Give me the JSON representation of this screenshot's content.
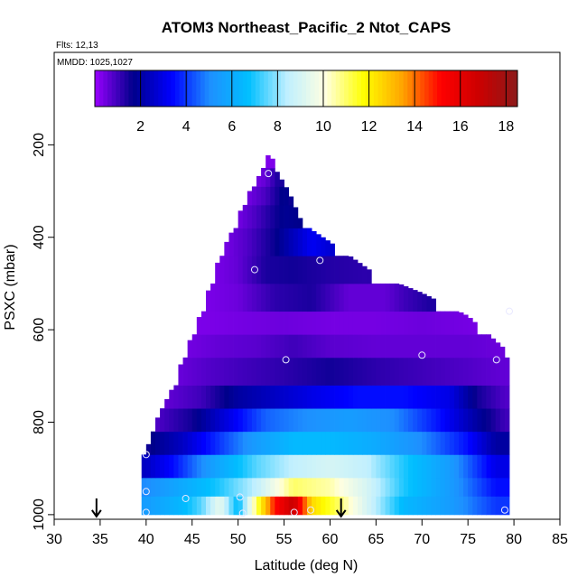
{
  "chart_data": {
    "type": "heatmap",
    "title": "ATOM3 Northeast_Pacific_2 Ntot_CAPS",
    "flights_note": "Flts: 12,13",
    "dates_note": "MMDD: 1025,1027",
    "xlabel": "Latitude (deg N)",
    "ylabel": "PSXC (mbar)",
    "xlim": [
      30,
      85
    ],
    "ylim": [
      1010,
      0
    ],
    "x_ticks": [
      "30",
      "35",
      "40",
      "45",
      "50",
      "55",
      "60",
      "65",
      "70",
      "75",
      "80",
      "85"
    ],
    "y_ticks": [
      "200",
      "400",
      "600",
      "800",
      "1000"
    ],
    "colorbar": {
      "min": 0,
      "max": 18.5,
      "ticks": [
        "2",
        "4",
        "6",
        "8",
        "10",
        "12",
        "14",
        "16",
        "18"
      ],
      "stops": [
        "#9900FF",
        "#00008B",
        "#0000FF",
        "#1E90FF",
        "#00BFFF",
        "#BFEFFF",
        "#FFFFE0",
        "#FFFF00",
        "#FFA500",
        "#FF0000",
        "#CC0000",
        "#8B1A1A"
      ]
    },
    "profile_top_pressure": [
      {
        "lat": 39.5,
        "p": 870
      },
      {
        "lat": 40.5,
        "p": 840
      },
      {
        "lat": 41,
        "p": 800
      },
      {
        "lat": 42,
        "p": 760
      },
      {
        "lat": 43,
        "p": 720
      },
      {
        "lat": 44,
        "p": 660
      },
      {
        "lat": 45,
        "p": 610
      },
      {
        "lat": 46,
        "p": 560
      },
      {
        "lat": 47,
        "p": 500
      },
      {
        "lat": 48,
        "p": 440
      },
      {
        "lat": 49.5,
        "p": 380
      },
      {
        "lat": 50.5,
        "p": 330
      },
      {
        "lat": 51.5,
        "p": 290
      },
      {
        "lat": 52.5,
        "p": 260
      },
      {
        "lat": 53.5,
        "p": 210
      },
      {
        "lat": 54,
        "p": 250
      },
      {
        "lat": 55.5,
        "p": 300
      },
      {
        "lat": 57,
        "p": 370
      },
      {
        "lat": 60,
        "p": 410
      },
      {
        "lat": 65,
        "p": 480
      },
      {
        "lat": 70,
        "p": 520
      },
      {
        "lat": 75,
        "p": 570
      },
      {
        "lat": 79.5,
        "p": 650
      }
    ],
    "profile_bottom_pressure": 1000,
    "bands": [
      {
        "p_from": 960,
        "p_to": 1000,
        "values": [
          [
            40,
            5.5
          ],
          [
            44,
            6.5
          ],
          [
            46,
            7.5
          ],
          [
            48,
            9.5
          ],
          [
            50,
            6.5
          ],
          [
            52,
            11
          ],
          [
            54,
            15
          ],
          [
            56,
            17
          ],
          [
            58,
            12.5
          ],
          [
            61,
            11
          ],
          [
            64,
            9
          ],
          [
            68,
            6.5
          ],
          [
            73,
            5.5
          ],
          [
            78,
            4
          ]
        ]
      },
      {
        "p_from": 920,
        "p_to": 960,
        "values": [
          [
            40,
            5
          ],
          [
            44,
            6
          ],
          [
            48,
            7
          ],
          [
            52,
            8.5
          ],
          [
            56,
            11
          ],
          [
            60,
            10.5
          ],
          [
            64,
            9
          ],
          [
            68,
            7
          ],
          [
            73,
            5.5
          ],
          [
            78,
            3.5
          ]
        ]
      },
      {
        "p_from": 870,
        "p_to": 920,
        "values": [
          [
            40,
            2.5
          ],
          [
            43,
            3.5
          ],
          [
            47,
            5.5
          ],
          [
            52,
            7.5
          ],
          [
            56,
            8.5
          ],
          [
            60,
            9
          ],
          [
            64,
            8.5
          ],
          [
            68,
            7
          ],
          [
            73,
            5.5
          ],
          [
            78,
            3
          ]
        ]
      },
      {
        "p_from": 820,
        "p_to": 870,
        "values": [
          [
            40,
            1.5
          ],
          [
            44,
            2.5
          ],
          [
            48,
            4
          ],
          [
            52,
            5.5
          ],
          [
            56,
            6.5
          ],
          [
            60,
            6.5
          ],
          [
            65,
            6
          ],
          [
            70,
            5
          ],
          [
            75,
            3.5
          ],
          [
            78,
            2
          ]
        ]
      },
      {
        "p_from": 770,
        "p_to": 820,
        "values": [
          [
            41,
            0.8
          ],
          [
            45,
            1.5
          ],
          [
            49,
            3
          ],
          [
            53,
            4.5
          ],
          [
            57,
            5
          ],
          [
            62,
            5.5
          ],
          [
            67,
            5
          ],
          [
            72,
            3.5
          ],
          [
            76,
            2
          ],
          [
            79,
            1
          ]
        ]
      },
      {
        "p_from": 720,
        "p_to": 770,
        "values": [
          [
            42,
            0.6
          ],
          [
            46,
            1
          ],
          [
            50,
            2
          ],
          [
            54,
            2.5
          ],
          [
            58,
            3
          ],
          [
            63,
            3.5
          ],
          [
            68,
            3.5
          ],
          [
            73,
            3
          ],
          [
            76,
            1.5
          ],
          [
            79,
            0.8
          ]
        ]
      },
      {
        "p_from": 660,
        "p_to": 720,
        "values": [
          [
            43,
            0.5
          ],
          [
            47,
            0.8
          ],
          [
            51,
            1
          ],
          [
            55,
            1.2
          ],
          [
            60,
            1.5
          ],
          [
            65,
            1.2
          ],
          [
            70,
            1
          ],
          [
            75,
            0.8
          ],
          [
            79,
            0.6
          ]
        ]
      },
      {
        "p_from": 610,
        "p_to": 660,
        "values": [
          [
            44,
            0.4
          ],
          [
            48,
            0.6
          ],
          [
            52,
            0.7
          ],
          [
            56,
            1
          ],
          [
            60,
            0.7
          ],
          [
            65,
            0.6
          ],
          [
            70,
            0.6
          ],
          [
            75,
            0.6
          ],
          [
            79,
            0.5
          ]
        ]
      },
      {
        "p_from": 560,
        "p_to": 610,
        "values": [
          [
            45,
            0.3
          ],
          [
            50,
            0.4
          ],
          [
            55,
            0.5
          ],
          [
            60,
            0.4
          ],
          [
            65,
            0.4
          ],
          [
            70,
            0.5
          ],
          [
            75,
            0.4
          ],
          [
            79,
            0.3
          ]
        ]
      },
      {
        "p_from": 500,
        "p_to": 560,
        "values": [
          [
            46,
            0.3
          ],
          [
            50,
            0.5
          ],
          [
            54,
            1.2
          ],
          [
            58,
            1.4
          ],
          [
            62,
            0.6
          ],
          [
            66,
            0.6
          ],
          [
            68,
            1
          ],
          [
            71,
            1.4
          ],
          [
            74,
            1
          ]
        ]
      },
      {
        "p_from": 440,
        "p_to": 500,
        "values": [
          [
            47,
            0.3
          ],
          [
            50,
            0.6
          ],
          [
            53,
            1.4
          ],
          [
            56,
            1.5
          ],
          [
            60,
            1.3
          ],
          [
            64,
            1.2
          ],
          [
            66,
            1.4
          ],
          [
            69,
            1.2
          ]
        ]
      },
      {
        "p_from": 380,
        "p_to": 440,
        "values": [
          [
            48,
            0.3
          ],
          [
            51,
            0.8
          ],
          [
            54,
            1.6
          ],
          [
            58,
            3.2
          ],
          [
            61,
            2.5
          ],
          [
            64,
            1
          ]
        ]
      },
      {
        "p_from": 330,
        "p_to": 380,
        "values": [
          [
            49.5,
            0.3
          ],
          [
            52,
            0.9
          ],
          [
            55,
            1.8
          ],
          [
            58,
            1.6
          ],
          [
            60,
            1.2
          ]
        ]
      },
      {
        "p_from": 290,
        "p_to": 330,
        "values": [
          [
            50.5,
            0.3
          ],
          [
            53,
            0.9
          ],
          [
            55,
            1.8
          ],
          [
            57,
            1.2
          ]
        ]
      },
      {
        "p_from": 250,
        "p_to": 290,
        "values": [
          [
            51.5,
            0.3
          ],
          [
            53,
            0.6
          ],
          [
            54.5,
            1.5
          ],
          [
            56,
            0.9
          ]
        ]
      },
      {
        "p_from": 210,
        "p_to": 250,
        "values": [
          [
            53.5,
            0.3
          ],
          [
            54,
            0.3
          ]
        ]
      }
    ],
    "sample_points": [
      {
        "lat": 40,
        "p": 870
      },
      {
        "lat": 40,
        "p": 950
      },
      {
        "lat": 40,
        "p": 995
      },
      {
        "lat": 44.3,
        "p": 965
      },
      {
        "lat": 50.2,
        "p": 962
      },
      {
        "lat": 50.5,
        "p": 997
      },
      {
        "lat": 53.3,
        "p": 262
      },
      {
        "lat": 55.2,
        "p": 665
      },
      {
        "lat": 56.1,
        "p": 995
      },
      {
        "lat": 57.9,
        "p": 990
      },
      {
        "lat": 51.8,
        "p": 470
      },
      {
        "lat": 58.9,
        "p": 450
      },
      {
        "lat": 70,
        "p": 655
      },
      {
        "lat": 78.1,
        "p": 665
      },
      {
        "lat": 79,
        "p": 990
      },
      {
        "lat": 79.5,
        "p": 560
      }
    ],
    "arrows": [
      {
        "lat": 34.6,
        "p": 1000
      },
      {
        "lat": 61.2,
        "p": 1000
      }
    ]
  }
}
